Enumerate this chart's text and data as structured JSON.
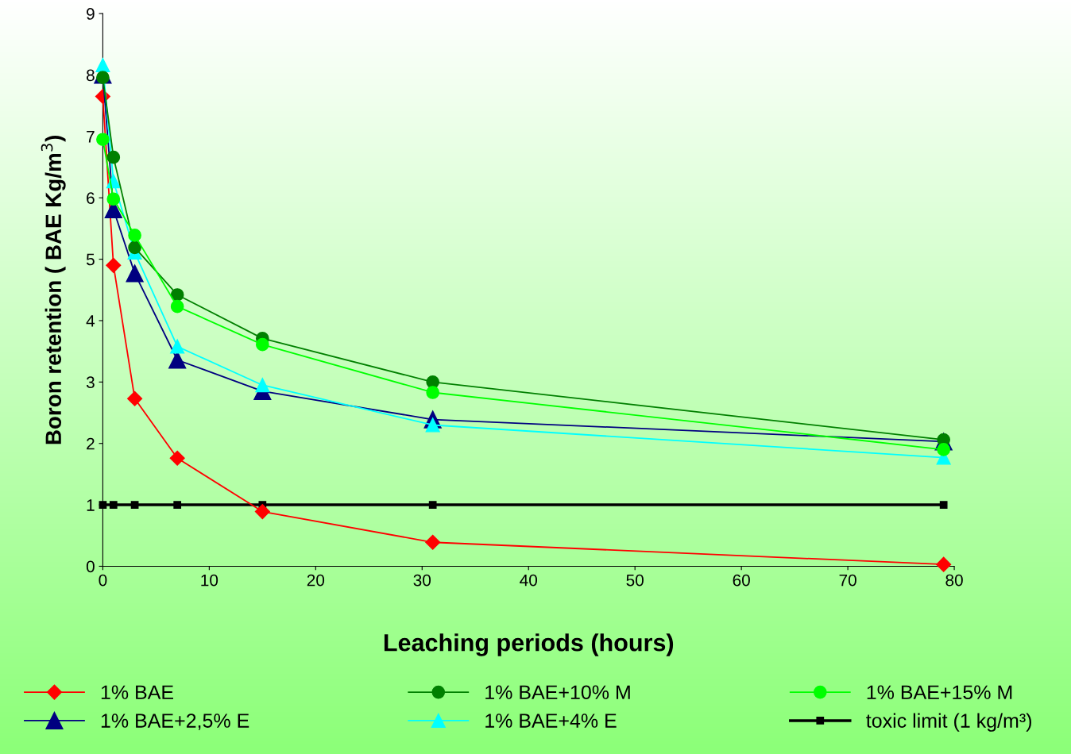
{
  "chart_data": {
    "type": "line",
    "xlabel": "Leaching periods (hours)",
    "ylabel": "Boron retention ( BAE Kg/m$^{3}$)",
    "x": [
      0,
      1,
      3,
      7,
      15,
      31,
      79
    ],
    "series": [
      {
        "name": "1% BAE",
        "color": "#ff0000",
        "marker": "diamond",
        "values": [
          7.65,
          4.9,
          2.73,
          1.76,
          0.89,
          0.39,
          0.03
        ]
      },
      {
        "name": "1% BAE+10% M",
        "color": "#008000",
        "marker": "circle",
        "values": [
          7.96,
          6.66,
          5.19,
          4.42,
          3.71,
          3.0,
          2.06
        ]
      },
      {
        "name": "1% BAE+15% M",
        "color": "#00ff00",
        "marker": "circle",
        "values": [
          6.95,
          5.98,
          5.39,
          4.23,
          3.61,
          2.83,
          1.9
        ]
      },
      {
        "name": "1% BAE+2,5% E",
        "color": "#000080",
        "marker": "triangle",
        "values": [
          8.0,
          5.81,
          4.77,
          3.36,
          2.85,
          2.39,
          2.03
        ]
      },
      {
        "name": "1% BAE+4% E",
        "color": "#00ffff",
        "marker": "triangle",
        "values": [
          8.16,
          6.27,
          5.11,
          3.58,
          2.95,
          2.3,
          1.77
        ]
      },
      {
        "name": "toxic limit (1 kg/m³)",
        "color": "#000000",
        "marker": "square",
        "values": [
          1,
          1,
          1,
          1,
          1,
          1,
          1
        ]
      }
    ],
    "xlim": [
      0,
      80
    ],
    "xticks": [
      0,
      10,
      20,
      30,
      40,
      50,
      60,
      70,
      80
    ],
    "ylim": [
      0,
      9
    ],
    "yticks": [
      0,
      1,
      2,
      3,
      4,
      5,
      6,
      7,
      8,
      9
    ],
    "grid": false,
    "legend": "bottom",
    "line_style": "solid"
  }
}
